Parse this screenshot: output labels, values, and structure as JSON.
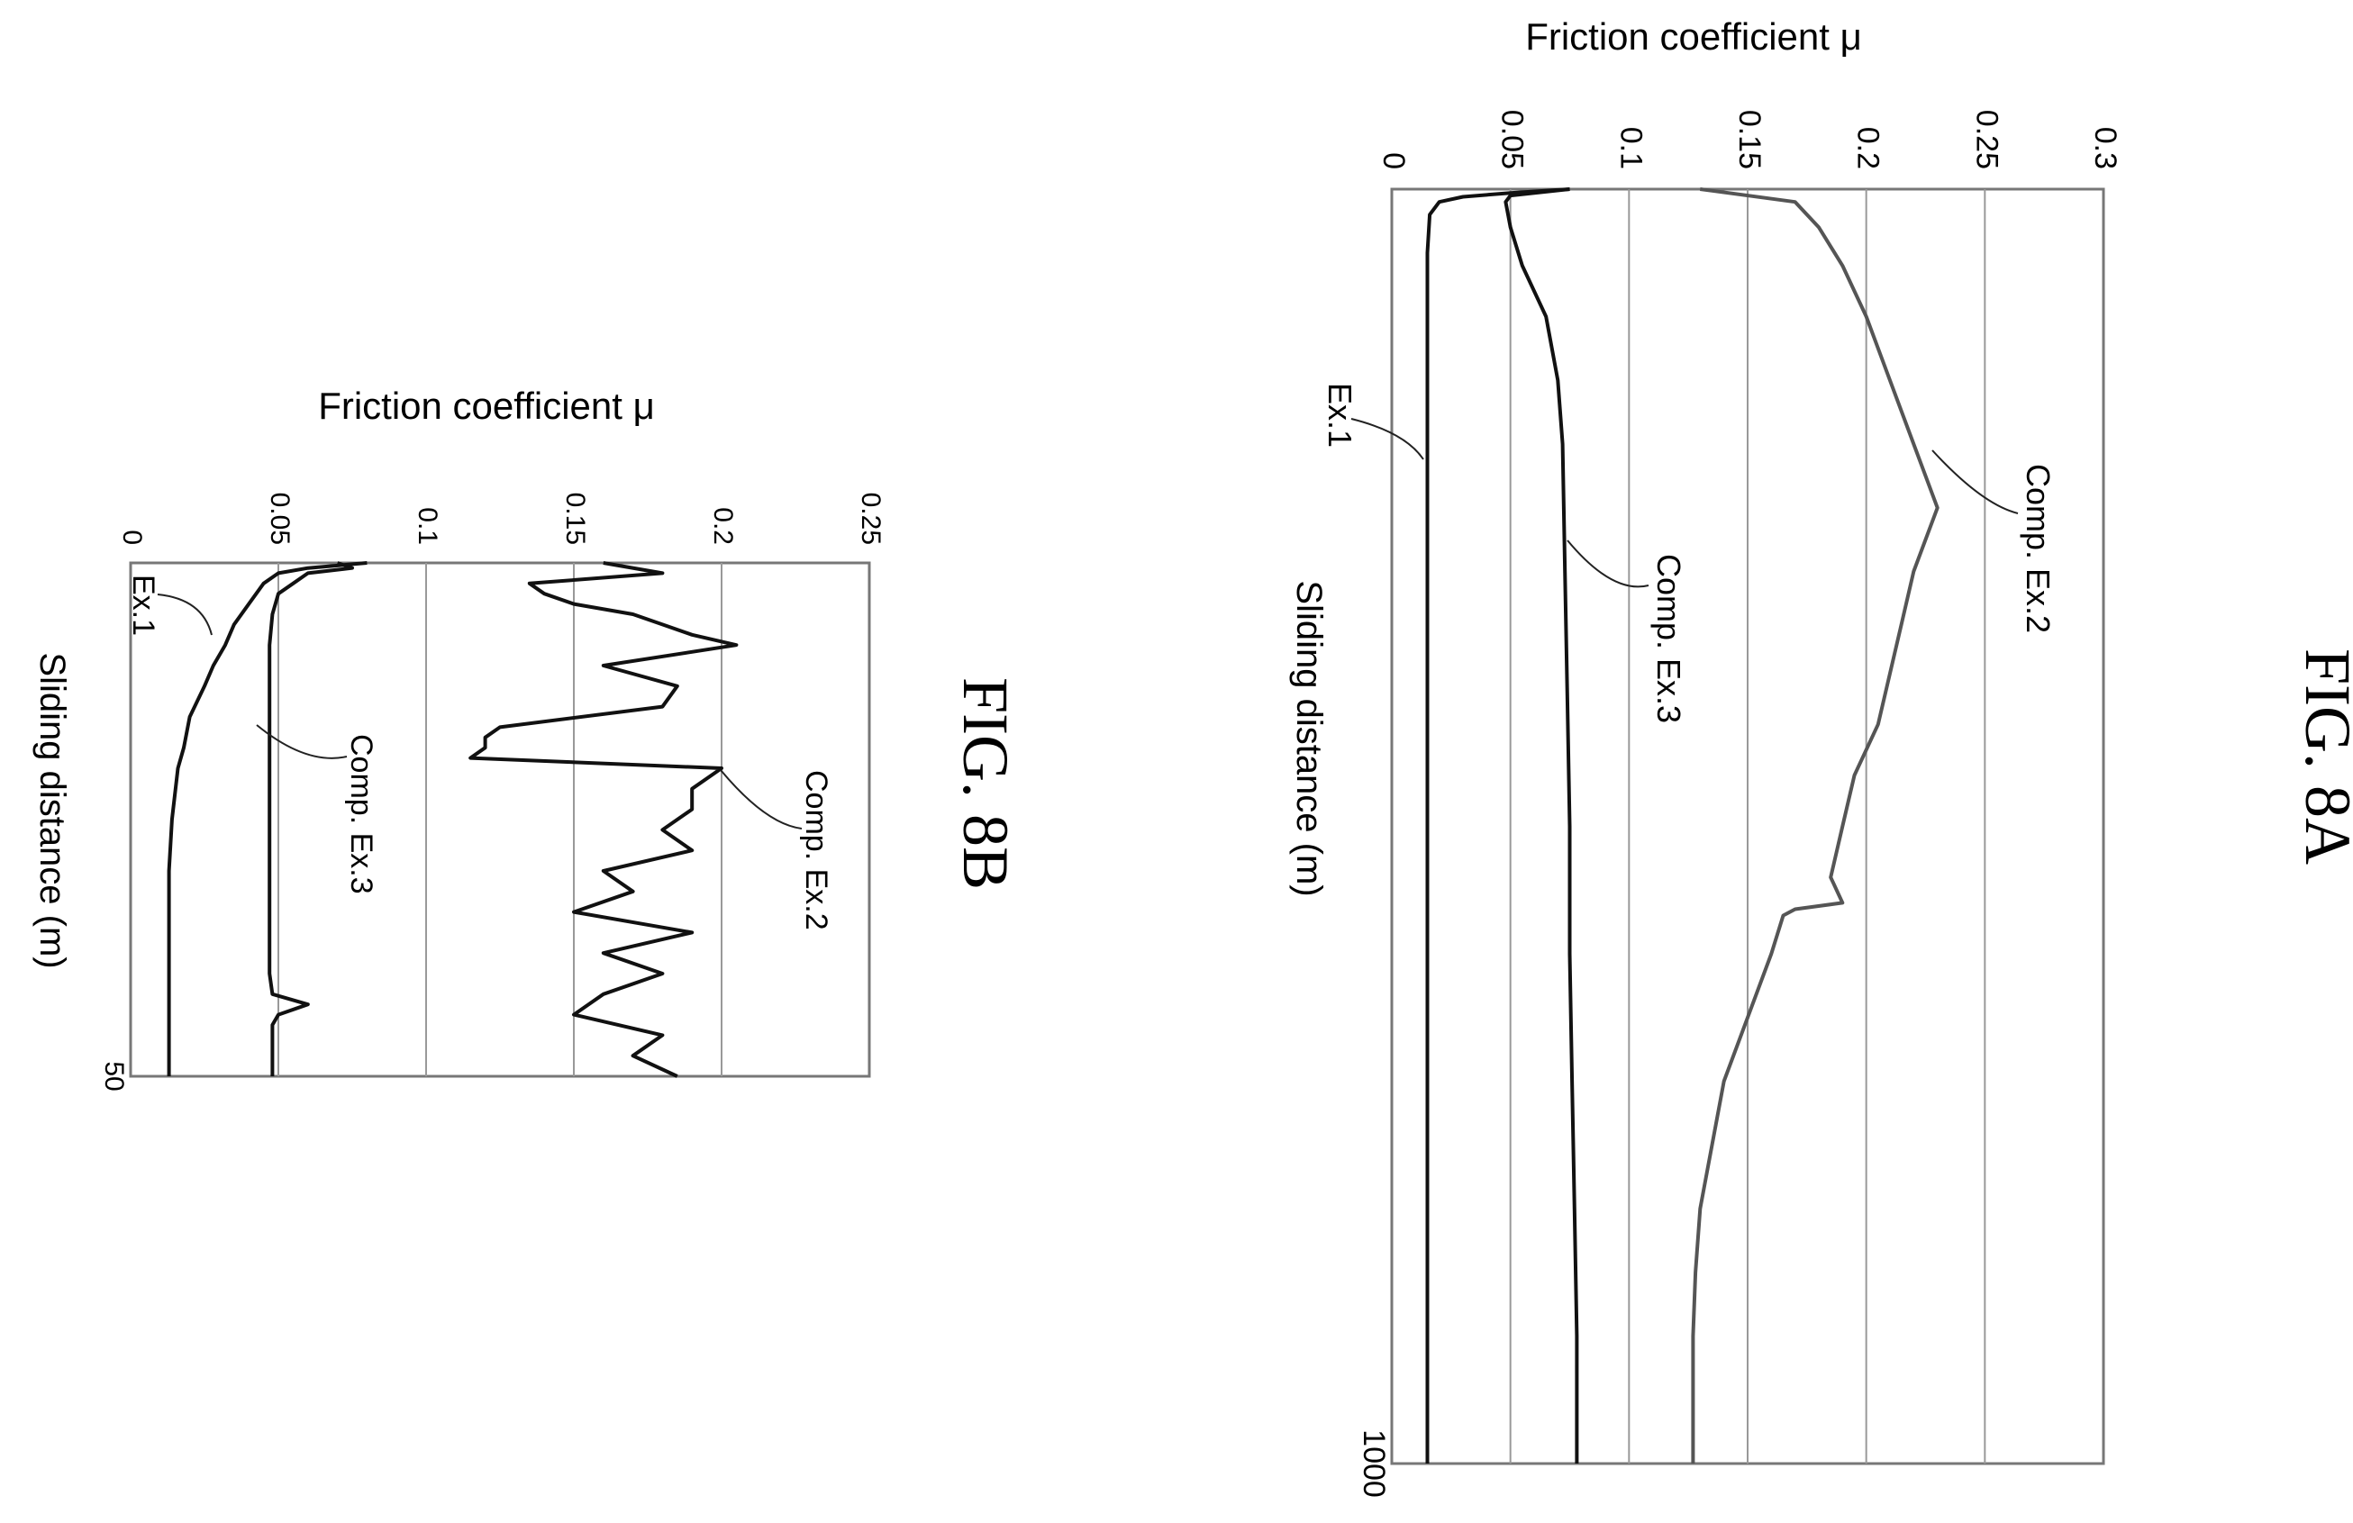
{
  "chart_data": [
    {
      "type": "line",
      "figure_label": "FIG. 8A",
      "xlabel": "Sliding distance (m)",
      "ylabel": "Friction coefficient μ",
      "xlim": [
        0,
        1000
      ],
      "ylim": [
        0,
        0.3
      ],
      "x_ticks": [
        "1000"
      ],
      "y_ticks": [
        "0",
        "0.05",
        "0.1",
        "0.15",
        "0.2",
        "0.25",
        "0.3"
      ],
      "grid": "horizontal",
      "annotations": [
        "Comp. Ex.2",
        "Comp. Ex.3",
        "Ex.1"
      ],
      "series": [
        {
          "name": "Comp. Ex.2",
          "color": "#555555",
          "x": [
            0,
            10,
            30,
            60,
            100,
            150,
            200,
            250,
            300,
            340,
            380,
            420,
            460,
            500,
            540,
            560,
            565,
            570,
            600,
            650,
            700,
            750,
            800,
            850,
            900,
            1000
          ],
          "y": [
            0.13,
            0.17,
            0.18,
            0.19,
            0.2,
            0.21,
            0.22,
            0.23,
            0.22,
            0.215,
            0.21,
            0.205,
            0.195,
            0.19,
            0.185,
            0.19,
            0.17,
            0.165,
            0.16,
            0.15,
            0.14,
            0.135,
            0.13,
            0.128,
            0.127,
            0.127
          ]
        },
        {
          "name": "Comp. Ex.3",
          "color": "#111111",
          "x": [
            0,
            5,
            10,
            30,
            60,
            100,
            150,
            200,
            300,
            400,
            500,
            600,
            700,
            800,
            900,
            1000
          ],
          "y": [
            0.075,
            0.05,
            0.048,
            0.05,
            0.055,
            0.065,
            0.07,
            0.072,
            0.073,
            0.074,
            0.075,
            0.075,
            0.076,
            0.077,
            0.078,
            0.078
          ]
        },
        {
          "name": "Ex.1",
          "color": "#111111",
          "x": [
            0,
            3,
            6,
            10,
            20,
            50,
            100,
            200,
            400,
            600,
            800,
            1000
          ],
          "y": [
            0.075,
            0.05,
            0.03,
            0.02,
            0.016,
            0.015,
            0.015,
            0.015,
            0.015,
            0.015,
            0.015,
            0.015
          ]
        }
      ]
    },
    {
      "type": "line",
      "figure_label": "FIG. 8B",
      "xlabel": "Sliding distance (m)",
      "ylabel": "Friction coefficient μ",
      "xlim": [
        0,
        50
      ],
      "ylim": [
        0,
        0.25
      ],
      "x_ticks": [
        "50"
      ],
      "y_ticks": [
        "0",
        "0.05",
        "0.1",
        "0.15",
        "0.2",
        "0.25"
      ],
      "grid": "horizontal",
      "annotations": [
        "Comp. Ex.2",
        "Comp. Ex.3",
        "Ex.1"
      ],
      "series": [
        {
          "name": "Comp. Ex.2",
          "color": "#111111",
          "x": [
            0,
            1,
            2,
            3,
            4,
            5,
            6,
            7,
            8,
            10,
            12,
            14,
            16,
            17,
            18,
            19,
            20,
            22,
            24,
            26,
            28,
            30,
            32,
            34,
            36,
            38,
            40,
            42,
            44,
            46,
            48,
            50
          ],
          "y": [
            0.16,
            0.18,
            0.135,
            0.14,
            0.15,
            0.17,
            0.18,
            0.19,
            0.205,
            0.16,
            0.185,
            0.18,
            0.125,
            0.12,
            0.12,
            0.115,
            0.2,
            0.19,
            0.19,
            0.18,
            0.19,
            0.16,
            0.17,
            0.15,
            0.19,
            0.16,
            0.18,
            0.16,
            0.15,
            0.18,
            0.17,
            0.185
          ]
        },
        {
          "name": "Comp. Ex.3",
          "color": "#111111",
          "x": [
            0,
            0.5,
            1,
            2,
            3,
            5,
            8,
            12,
            20,
            30,
            40,
            42,
            43,
            44,
            45,
            48,
            50
          ],
          "y": [
            0.07,
            0.075,
            0.06,
            0.055,
            0.05,
            0.048,
            0.047,
            0.047,
            0.047,
            0.047,
            0.047,
            0.048,
            0.06,
            0.05,
            0.048,
            0.048,
            0.048
          ]
        },
        {
          "name": "Ex.1",
          "color": "#111111",
          "x": [
            0,
            0.5,
            1,
            2,
            4,
            6,
            8,
            10,
            12,
            15,
            18,
            20,
            25,
            30,
            40,
            50
          ],
          "y": [
            0.08,
            0.06,
            0.05,
            0.045,
            0.04,
            0.035,
            0.032,
            0.028,
            0.025,
            0.02,
            0.018,
            0.016,
            0.014,
            0.013,
            0.013,
            0.013
          ]
        }
      ]
    }
  ]
}
